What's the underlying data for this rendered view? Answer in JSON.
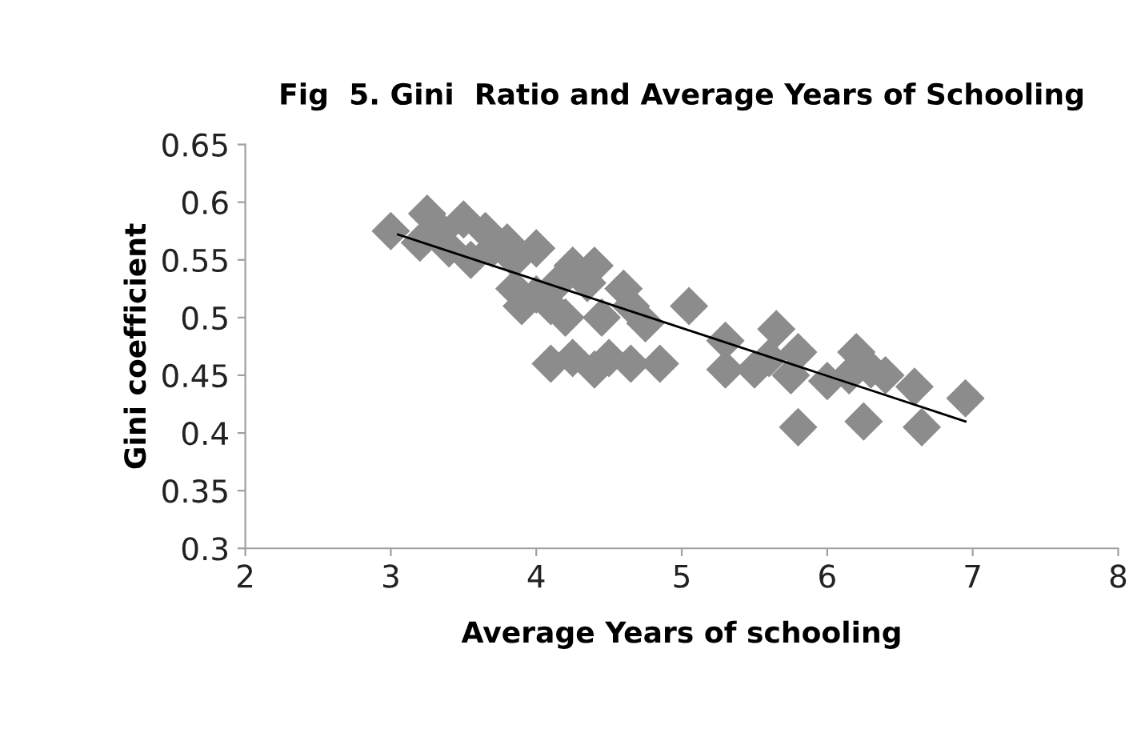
{
  "chart_data": {
    "type": "scatter",
    "title": "Fig  5. Gini  Ratio and Average Years of Schooling",
    "xlabel": "Average Years of schooling",
    "ylabel": "Gini coefficient",
    "grid": false,
    "legend": false,
    "xlim": [
      2,
      8
    ],
    "xticks": [
      2,
      3,
      4,
      5,
      6,
      7,
      8
    ],
    "ylim": [
      0.3,
      0.65
    ],
    "yticks": [
      {
        "value": 0.3,
        "label": "0.3"
      },
      {
        "value": 0.35,
        "label": "0.35"
      },
      {
        "value": 0.4,
        "label": "0.4"
      },
      {
        "value": 0.45,
        "label": "0.45"
      },
      {
        "value": 0.5,
        "label": "0.5"
      },
      {
        "value": 0.55,
        "label": "0.55"
      },
      {
        "value": 0.6,
        "label": "0.6"
      },
      {
        "value": 0.65,
        "label": "0.65"
      }
    ],
    "series": [
      {
        "color": "#8c8c8c",
        "marker": "diamond",
        "x": [
          3.0,
          3.25,
          3.2,
          3.35,
          3.4,
          3.5,
          3.55,
          3.65,
          3.7,
          3.8,
          3.85,
          3.85,
          3.9,
          4.0,
          4.0,
          4.1,
          4.15,
          4.2,
          4.25,
          4.35,
          4.4,
          4.45,
          4.6,
          4.65,
          4.75,
          5.05,
          4.1,
          4.25,
          4.4,
          4.5,
          4.65,
          4.85,
          5.3,
          5.3,
          5.5,
          5.65,
          5.6,
          5.75,
          5.8,
          5.8,
          6.0,
          6.2,
          6.15,
          6.3,
          6.25,
          6.4,
          6.6,
          6.65,
          6.95
        ],
        "values": [
          0.575,
          0.59,
          0.565,
          0.575,
          0.56,
          0.585,
          0.55,
          0.575,
          0.56,
          0.565,
          0.55,
          0.525,
          0.51,
          0.56,
          0.52,
          0.51,
          0.53,
          0.5,
          0.545,
          0.53,
          0.545,
          0.5,
          0.525,
          0.51,
          0.495,
          0.51,
          0.46,
          0.465,
          0.455,
          0.465,
          0.46,
          0.46,
          0.48,
          0.455,
          0.455,
          0.49,
          0.465,
          0.45,
          0.47,
          0.405,
          0.445,
          0.47,
          0.45,
          0.455,
          0.41,
          0.45,
          0.44,
          0.405,
          0.43
        ]
      },
      {
        "type": "line",
        "marker": "none",
        "color": "#000000",
        "x": [
          3.05,
          6.95
        ],
        "values": [
          0.572,
          0.41
        ]
      }
    ]
  }
}
